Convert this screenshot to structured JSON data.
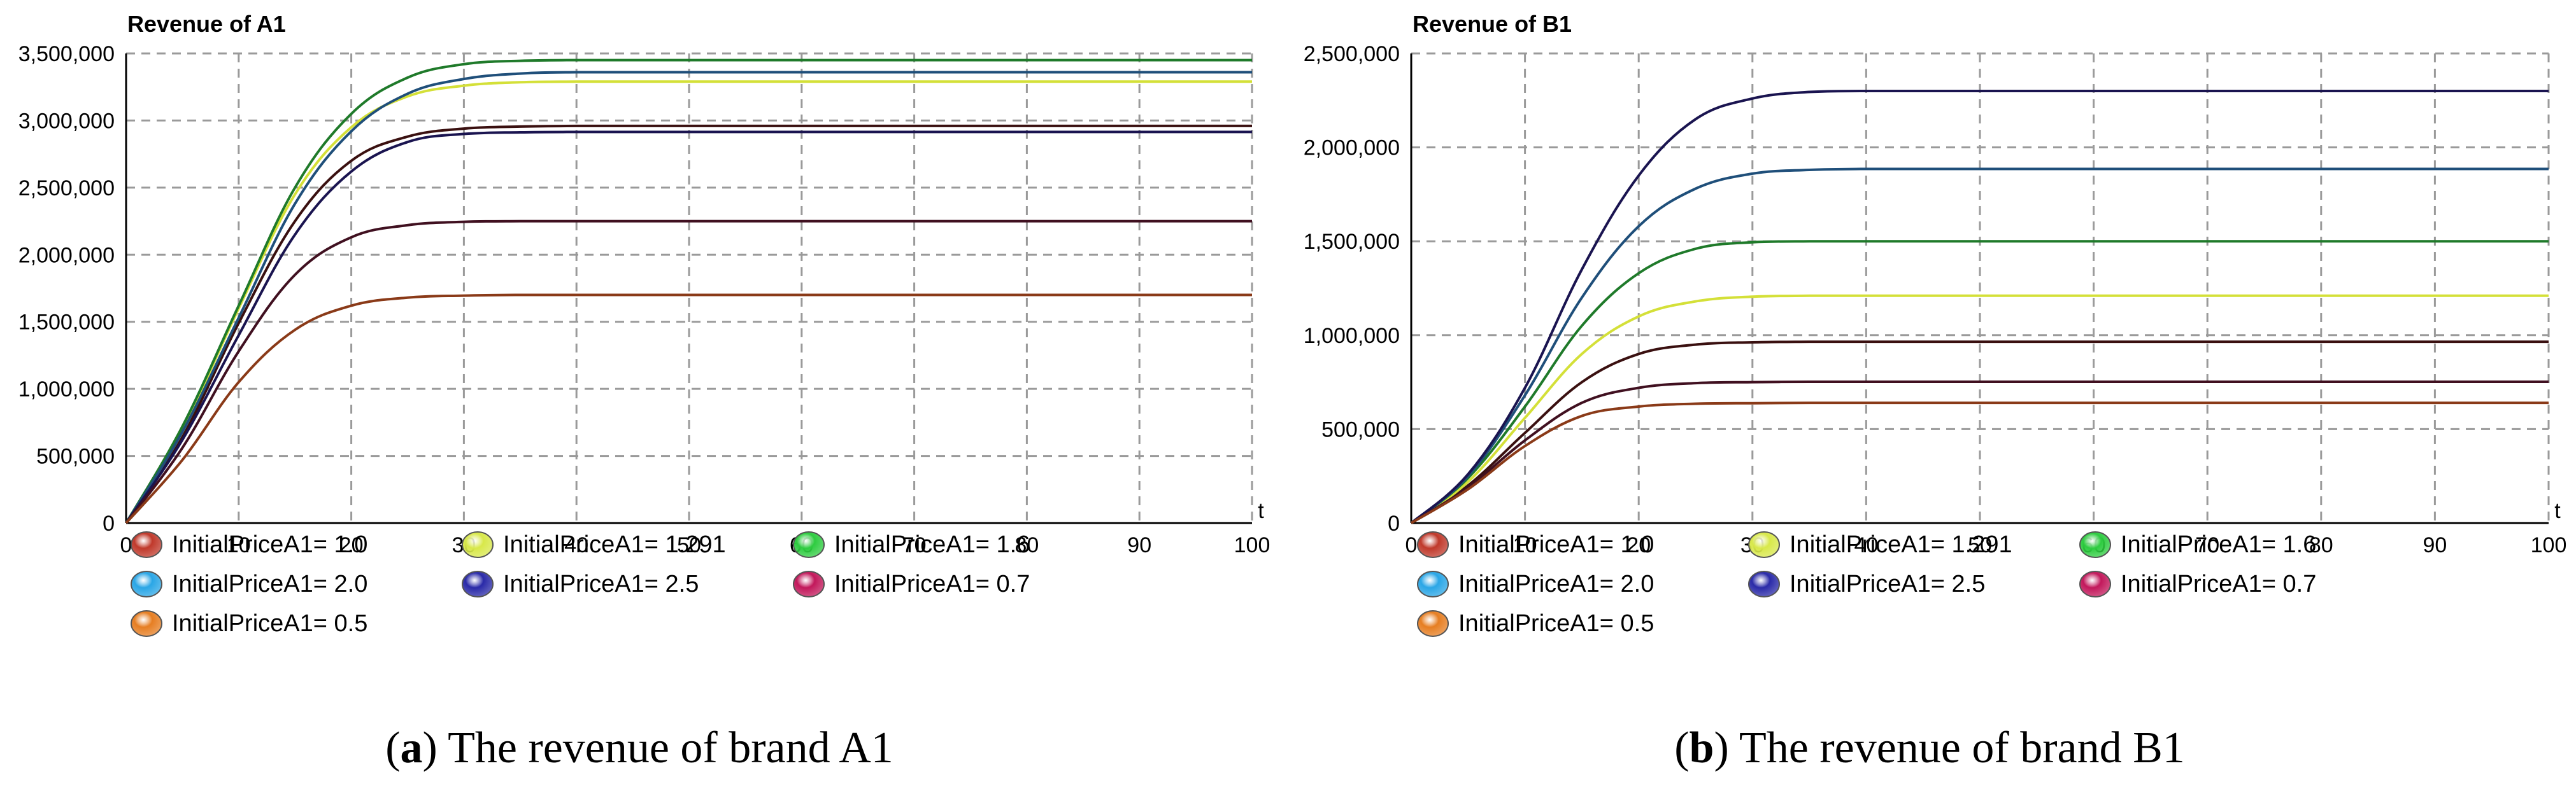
{
  "chart_data": [
    {
      "type": "line",
      "title": "Revenue of A1",
      "xlabel": "t",
      "ylabel": "",
      "xlim": [
        0,
        100
      ],
      "ylim": [
        0,
        3500000
      ],
      "x_ticks": [
        "0",
        "10",
        "20",
        "30",
        "40",
        "50",
        "60",
        "70",
        "80",
        "90",
        "100"
      ],
      "y_ticks": [
        "0",
        "500,000",
        "1,000,000",
        "1,500,000",
        "2,000,000",
        "2,500,000",
        "3,000,000",
        "3,500,000"
      ],
      "x": [
        0,
        5,
        10,
        15,
        20,
        25,
        30,
        35,
        40,
        50,
        60,
        70,
        80,
        90,
        100
      ],
      "series": [
        {
          "name": "InitialPriceA1= 1.0",
          "color": "#c0392b",
          "line_color": "#3a1010",
          "values": [
            0,
            640000,
            1490000,
            2250000,
            2700000,
            2880000,
            2940000,
            2955000,
            2960000,
            2960000,
            2960000,
            2960000,
            2960000,
            2960000,
            2960000
          ]
        },
        {
          "name": "InitialPriceA1= 1.291",
          "color": "#d8e84a",
          "line_color": "#d4e038",
          "values": [
            0,
            700000,
            1600000,
            2450000,
            2950000,
            3180000,
            3260000,
            3285000,
            3290000,
            3290000,
            3290000,
            3290000,
            3290000,
            3290000,
            3290000
          ]
        },
        {
          "name": "InitialPriceA1= 1.6",
          "color": "#2ecc40",
          "line_color": "#1f7a2a",
          "values": [
            0,
            720000,
            1620000,
            2500000,
            3050000,
            3320000,
            3420000,
            3445000,
            3450000,
            3450000,
            3450000,
            3450000,
            3450000,
            3450000,
            3450000
          ]
        },
        {
          "name": "InitialPriceA1= 2.0",
          "color": "#2aa6e6",
          "line_color": "#1f4f7a",
          "values": [
            0,
            680000,
            1530000,
            2380000,
            2920000,
            3200000,
            3310000,
            3350000,
            3360000,
            3360000,
            3360000,
            3360000,
            3360000,
            3360000,
            3360000
          ]
        },
        {
          "name": "InitialPriceA1= 2.5",
          "color": "#2a2aa8",
          "line_color": "#1a1450",
          "values": [
            0,
            620000,
            1400000,
            2150000,
            2620000,
            2840000,
            2900000,
            2912000,
            2915000,
            2915000,
            2915000,
            2915000,
            2915000,
            2915000,
            2915000
          ]
        },
        {
          "name": "InitialPriceA1= 0.7",
          "color": "#c2185b",
          "line_color": "#401020",
          "values": [
            0,
            560000,
            1280000,
            1850000,
            2130000,
            2220000,
            2245000,
            2250000,
            2250000,
            2250000,
            2250000,
            2250000,
            2250000,
            2250000,
            2250000
          ]
        },
        {
          "name": "InitialPriceA1= 0.5",
          "color": "#e67e22",
          "line_color": "#8a3a18",
          "values": [
            0,
            470000,
            1050000,
            1440000,
            1620000,
            1680000,
            1695000,
            1700000,
            1700000,
            1700000,
            1700000,
            1700000,
            1700000,
            1700000,
            1700000
          ]
        }
      ],
      "legend_position": "bottom"
    },
    {
      "type": "line",
      "title": "Revenue of B1",
      "xlabel": "t",
      "ylabel": "",
      "xlim": [
        0,
        100
      ],
      "ylim": [
        0,
        2500000
      ],
      "x_ticks": [
        "0",
        "10",
        "20",
        "30",
        "40",
        "50",
        "60",
        "70",
        "80",
        "90",
        "100"
      ],
      "y_ticks": [
        "0",
        "500,000",
        "1,000,000",
        "1,500,000",
        "2,000,000",
        "2,500,000"
      ],
      "x": [
        0,
        5,
        10,
        15,
        20,
        25,
        30,
        35,
        40,
        50,
        60,
        70,
        80,
        90,
        100
      ],
      "series": [
        {
          "name": "InitialPriceA1= 1.0",
          "color": "#c0392b",
          "line_color": "#3a1010",
          "values": [
            0,
            200000,
            480000,
            750000,
            900000,
            950000,
            962000,
            965000,
            965000,
            965000,
            965000,
            965000,
            965000,
            965000,
            965000
          ]
        },
        {
          "name": "InitialPriceA1= 1.291",
          "color": "#d8e84a",
          "line_color": "#d4e038",
          "values": [
            0,
            220000,
            560000,
            900000,
            1100000,
            1180000,
            1205000,
            1210000,
            1210000,
            1210000,
            1210000,
            1210000,
            1210000,
            1210000,
            1210000
          ]
        },
        {
          "name": "InitialPriceA1= 1.6",
          "color": "#2ecc40",
          "line_color": "#1f7a2a",
          "values": [
            0,
            240000,
            620000,
            1050000,
            1330000,
            1460000,
            1495000,
            1500000,
            1500000,
            1500000,
            1500000,
            1500000,
            1500000,
            1500000,
            1500000
          ]
        },
        {
          "name": "InitialPriceA1= 2.0",
          "color": "#2aa6e6",
          "line_color": "#1f4f7a",
          "values": [
            0,
            250000,
            680000,
            1200000,
            1580000,
            1780000,
            1860000,
            1880000,
            1885000,
            1885000,
            1885000,
            1885000,
            1885000,
            1885000,
            1885000
          ]
        },
        {
          "name": "InitialPriceA1= 2.5",
          "color": "#2a2aa8",
          "line_color": "#1a1450",
          "values": [
            0,
            260000,
            720000,
            1350000,
            1850000,
            2150000,
            2260000,
            2295000,
            2300000,
            2300000,
            2300000,
            2300000,
            2300000,
            2300000,
            2300000
          ]
        },
        {
          "name": "InitialPriceA1= 0.7",
          "color": "#c2185b",
          "line_color": "#401020",
          "values": [
            0,
            190000,
            440000,
            640000,
            720000,
            745000,
            750000,
            752000,
            752000,
            752000,
            752000,
            752000,
            752000,
            752000,
            752000
          ]
        },
        {
          "name": "InitialPriceA1= 0.5",
          "color": "#e67e22",
          "line_color": "#8a3a18",
          "values": [
            0,
            180000,
            410000,
            570000,
            620000,
            635000,
            638000,
            640000,
            640000,
            640000,
            640000,
            640000,
            640000,
            640000,
            640000
          ]
        }
      ],
      "legend_position": "bottom"
    }
  ],
  "captions": [
    {
      "letter": "a",
      "text": " The revenue of brand A1"
    },
    {
      "letter": "b",
      "text": " The revenue of brand B1"
    }
  ]
}
